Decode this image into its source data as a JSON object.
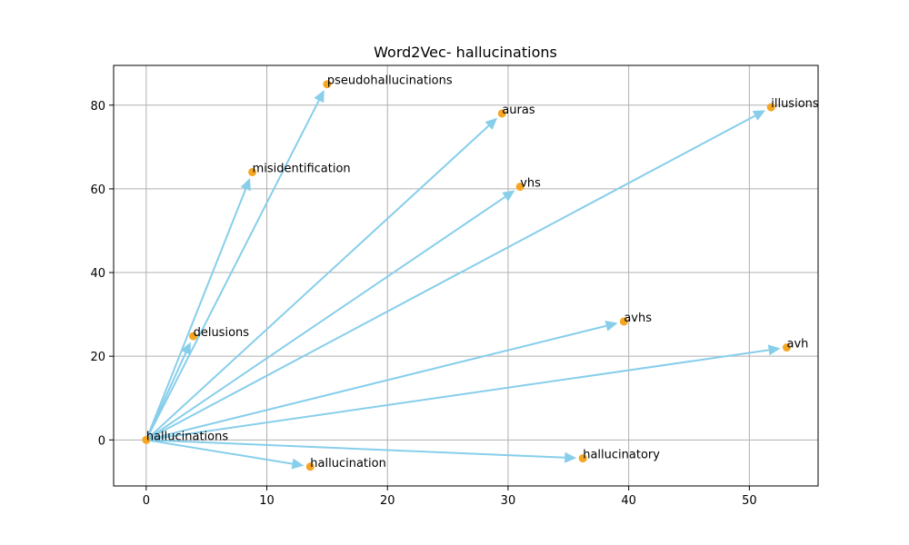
{
  "chart_data": {
    "type": "scatter",
    "title": "Word2Vec- hallucinations",
    "xlabel": "",
    "ylabel": "",
    "xlim": [
      -2.7,
      55.7
    ],
    "ylim": [
      -11,
      89.5
    ],
    "xticks": [
      0,
      10,
      20,
      30,
      40,
      50
    ],
    "yticks": [
      0,
      20,
      40,
      60,
      80
    ],
    "grid": true,
    "origin": {
      "label": "hallucinations",
      "x": 0,
      "y": 0
    },
    "points": [
      {
        "label": "pseudohallucinations",
        "x": 15.0,
        "y": 85.0
      },
      {
        "label": "auras",
        "x": 29.5,
        "y": 78.0
      },
      {
        "label": "illusions",
        "x": 51.8,
        "y": 79.5
      },
      {
        "label": "misidentification",
        "x": 8.8,
        "y": 64.0
      },
      {
        "label": "vhs",
        "x": 31.0,
        "y": 60.5
      },
      {
        "label": "delusions",
        "x": 3.9,
        "y": 24.8
      },
      {
        "label": "avhs",
        "x": 39.6,
        "y": 28.3
      },
      {
        "label": "avh",
        "x": 53.1,
        "y": 22.1
      },
      {
        "label": "hallucination",
        "x": 13.6,
        "y": -6.4
      },
      {
        "label": "hallucinatory",
        "x": 36.2,
        "y": -4.4
      }
    ],
    "colors": {
      "point": "#f5a623",
      "arrow": "#87ceeb",
      "grid": "#b0b0b0",
      "axis": "#000000"
    }
  }
}
